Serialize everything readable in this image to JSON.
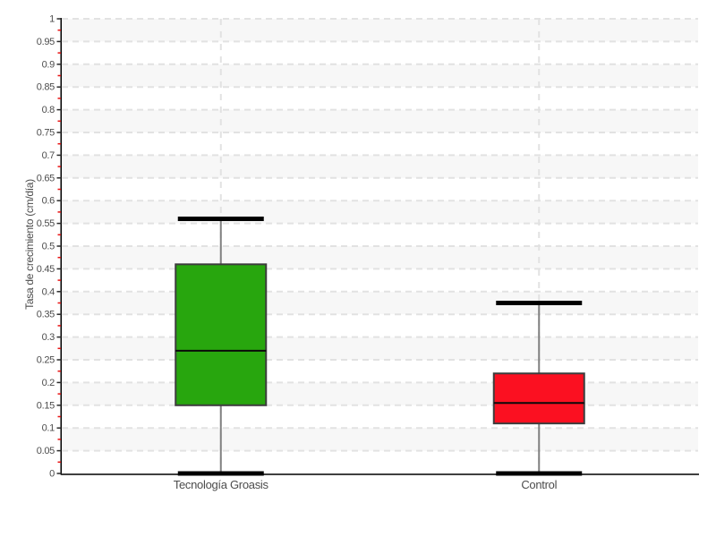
{
  "chart_data": {
    "type": "boxplot",
    "title": "",
    "xlabel": "",
    "ylabel": "Tasa de crecimiento (cm/día)",
    "ylim": [
      0,
      1
    ],
    "ytick_step": 0.05,
    "yminor_step": 0.025,
    "grid": "dashed horizontal lines at every 0.05 and dashed vertical line at each category center",
    "background_bands": "alternating light-gray / white horizontal bands of height 0.05, gray band starts at top (1.00-0.95)",
    "legend": "none",
    "categories": [
      "Tecnología Groasis",
      "Control"
    ],
    "series": [
      {
        "name": "Tecnología Groasis",
        "min": 0,
        "q1": 0.15,
        "median": 0.27,
        "q3": 0.46,
        "max": 0.56,
        "fill": "#28a60e"
      },
      {
        "name": "Control",
        "min": 0,
        "q1": 0.11,
        "median": 0.155,
        "q3": 0.22,
        "max": 0.375,
        "fill": "#fb1021"
      }
    ],
    "colors": {
      "band": "#f7f7f7",
      "gridline": "#e2e2e2",
      "axis": "#000000",
      "major_tick": "#2b2b2b",
      "minor_tick": "#e81313",
      "tick_label": "#4c4c4c",
      "category_label": "#4c4c4c",
      "box_stroke": "#3d3d3d",
      "median_line": "#0a0a0a",
      "whisker_stem": "#808080",
      "whisker_cap": "#000000"
    }
  }
}
